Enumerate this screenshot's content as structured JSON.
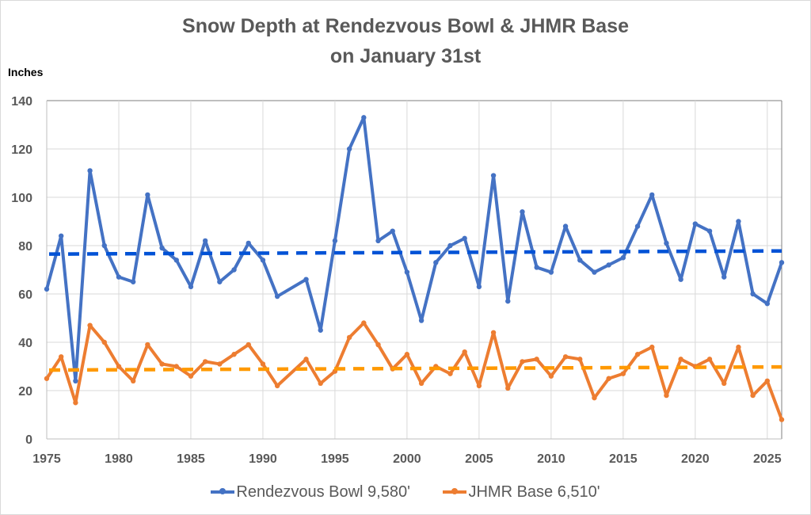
{
  "chart_data": {
    "type": "line",
    "title_lines": [
      "Snow Depth at Rendezvous Bowl & JHMR Base",
      "on January 31st"
    ],
    "ylabel": "Inches",
    "xlabel": "",
    "xlim": [
      1975,
      2026
    ],
    "ylim": [
      0,
      140
    ],
    "y_ticks": [
      0,
      20,
      40,
      60,
      80,
      100,
      120,
      140
    ],
    "x_ticks": [
      1975,
      1980,
      1985,
      1990,
      1995,
      2000,
      2005,
      2010,
      2015,
      2020,
      2025
    ],
    "grid": true,
    "legend_position": "bottom",
    "x": [
      1975,
      1976,
      1977,
      1978,
      1979,
      1980,
      1981,
      1982,
      1983,
      1984,
      1985,
      1986,
      1987,
      1988,
      1989,
      1990,
      1991,
      1992,
      1993,
      1994,
      1995,
      1996,
      1997,
      1998,
      1999,
      2000,
      2001,
      2002,
      2003,
      2004,
      2005,
      2006,
      2007,
      2008,
      2009,
      2010,
      2011,
      2012,
      2013,
      2014,
      2015,
      2016,
      2017,
      2018,
      2019,
      2020,
      2021,
      2022,
      2023,
      2024,
      2025,
      2026
    ],
    "series": [
      {
        "name": "Rendezvous Bowl 9,580'",
        "color": "#4472c4",
        "values": [
          62,
          84,
          24,
          111,
          80,
          67,
          65,
          101,
          79,
          74,
          63,
          82,
          65,
          70,
          81,
          74,
          59,
          null,
          66,
          45,
          82,
          120,
          133,
          82,
          86,
          69,
          49,
          73,
          80,
          83,
          63,
          109,
          57,
          94,
          71,
          69,
          88,
          74,
          69,
          72,
          75,
          88,
          101,
          81,
          66,
          89,
          86,
          67,
          90,
          60,
          56,
          73
        ],
        "trendline": {
          "color": "#0052d6",
          "start": 76.5,
          "end": 77.8
        }
      },
      {
        "name": "JHMR Base 6,510'",
        "color": "#ed7d31",
        "values": [
          25,
          34,
          15,
          47,
          40,
          30,
          24,
          39,
          31,
          30,
          26,
          32,
          31,
          35,
          39,
          31,
          22,
          null,
          33,
          23,
          28,
          42,
          48,
          39,
          29,
          35,
          23,
          30,
          27,
          36,
          22,
          44,
          21,
          32,
          33,
          26,
          34,
          33,
          17,
          25,
          27,
          35,
          38,
          18,
          33,
          30,
          33,
          23,
          38,
          18,
          24,
          8
        ],
        "trendline": {
          "color": "#ff9900",
          "start": 28.5,
          "end": 29.8
        }
      }
    ]
  }
}
